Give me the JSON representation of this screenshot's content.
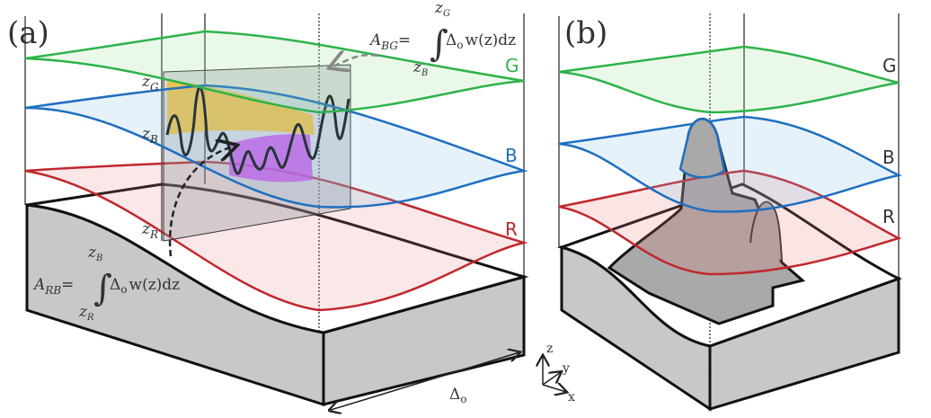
{
  "panels": [
    {
      "label": "(a)",
      "layers": [
        "G",
        "B",
        "R"
      ],
      "levels": [
        {
          "var": "z",
          "sub": "G"
        },
        {
          "var": "z",
          "sub": "B"
        },
        {
          "var": "z",
          "sub": "R"
        }
      ],
      "formulas": [
        {
          "lhs": "A",
          "lhs_sub": "BG",
          "eq": "=",
          "integral": "∫",
          "delta": "Δ",
          "delta_sub": "o",
          "tail": "w(z)dz",
          "upper": {
            "var": "z",
            "sub": "G"
          },
          "lower": {
            "var": "z",
            "sub": "B"
          }
        },
        {
          "lhs": "A",
          "lhs_sub": "RB",
          "eq": "=",
          "integral": "∫",
          "delta": "Δ",
          "delta_sub": "o",
          "tail": "w(z)dz",
          "upper": {
            "var": "z",
            "sub": "B"
          },
          "lower": {
            "var": "z",
            "sub": "R"
          }
        }
      ],
      "width_label": {
        "text": "Δ",
        "sub": "o"
      }
    },
    {
      "label": "(b)",
      "layers": [
        "G",
        "B",
        "R"
      ]
    }
  ],
  "axes": [
    "z",
    "y",
    "x"
  ]
}
